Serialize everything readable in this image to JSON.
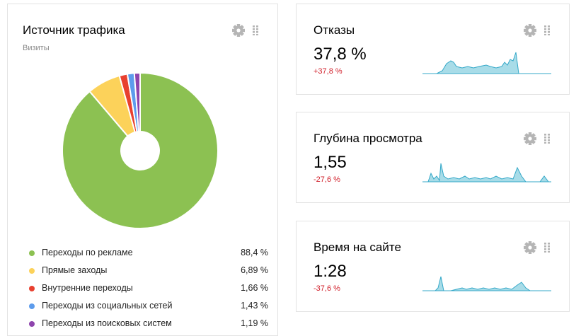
{
  "traffic": {
    "title": "Источник трафика",
    "subtitle": "Визиты",
    "sources": [
      {
        "label": "Переходы по рекламе",
        "value": "88,4 %",
        "share": 88.4,
        "color": "#8cc152"
      },
      {
        "label": "Прямые заходы",
        "value": "6,89 %",
        "share": 6.89,
        "color": "#fcd25a"
      },
      {
        "label": "Внутренние переходы",
        "value": "1,66 %",
        "share": 1.66,
        "color": "#e8402f"
      },
      {
        "label": "Переходы из социальных сетей",
        "value": "1,43 %",
        "share": 1.43,
        "color": "#5d9cec"
      },
      {
        "label": "Переходы из поисковых систем",
        "value": "1,19 %",
        "share": 1.19,
        "color": "#8e44ad"
      }
    ]
  },
  "metrics": [
    {
      "title": "Отказы",
      "value": "37,8 %",
      "delta": "+37,8 %",
      "spark": [
        0,
        0,
        0,
        0,
        0,
        0,
        0,
        0,
        0,
        0,
        0,
        0,
        0,
        0,
        0,
        0,
        0,
        0,
        0,
        0,
        0,
        0,
        0,
        0,
        0,
        0,
        0,
        0,
        0,
        0,
        0,
        0,
        0,
        0,
        0,
        0,
        0,
        0,
        0,
        0,
        0,
        0,
        0,
        0,
        0,
        0,
        0,
        0,
        0,
        0,
        0,
        0,
        0,
        0,
        0,
        0,
        0,
        0,
        0,
        0,
        0,
        0,
        0,
        0,
        0,
        0,
        0,
        0,
        0,
        0,
        0,
        0,
        0,
        0,
        0,
        0
      ]
    },
    {
      "title": "Глубина просмотра",
      "value": "1,55",
      "delta": "-27,6 %",
      "spark": [
        0,
        0,
        0,
        0,
        0,
        0,
        0,
        0,
        0,
        0,
        0,
        0,
        0,
        0,
        0,
        0,
        0,
        0,
        0,
        0,
        0,
        0,
        0,
        0,
        0,
        0,
        0,
        0,
        0,
        0,
        0,
        0,
        0,
        0,
        0,
        0,
        0,
        0,
        0,
        0,
        0,
        0,
        0,
        0,
        0,
        0,
        0,
        0,
        0,
        0,
        0,
        0,
        0,
        0,
        0,
        0,
        0,
        0,
        0,
        0,
        0,
        0,
        0,
        0,
        0,
        0,
        0,
        0,
        0,
        0,
        0,
        0,
        0,
        0,
        0,
        0
      ]
    },
    {
      "title": "Время на сайте",
      "value": "1:28",
      "delta": "-37,6 %",
      "spark": [
        0,
        0,
        0,
        0,
        0,
        0,
        0,
        0,
        0,
        0,
        0,
        0,
        0,
        0,
        0,
        0,
        0,
        0,
        0,
        0,
        0,
        0,
        0,
        0,
        0,
        0,
        0,
        0,
        0,
        0,
        0,
        0,
        0,
        0,
        0,
        0,
        0,
        0,
        0,
        0,
        0,
        0,
        0,
        0,
        0,
        0,
        0,
        0,
        0,
        0,
        0,
        0,
        0,
        0,
        0,
        0,
        0,
        0,
        0,
        0,
        0,
        0,
        0,
        0,
        0,
        0,
        0,
        0,
        0,
        0,
        0,
        0,
        0,
        0,
        0,
        0
      ]
    }
  ],
  "colors": {
    "spark_fill": "#a8dce8",
    "spark_line": "#34a8c8",
    "negative": "#d11f2a",
    "icon": "#b5b5b5"
  },
  "icons": {
    "settings": "gear-icon",
    "drag": "drag-handle-icon"
  }
}
